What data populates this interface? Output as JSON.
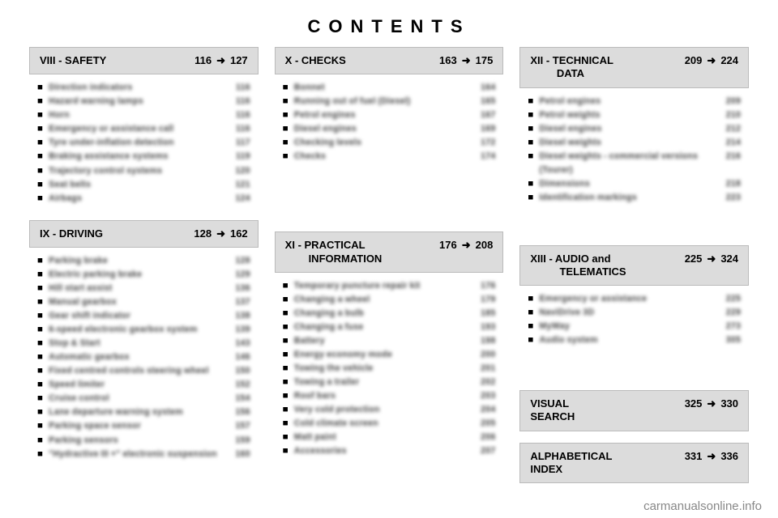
{
  "title": "CONTENTS",
  "watermark": "carmanualsonline.info",
  "arrow_glyph": "➜",
  "bullet_glyph": "■",
  "sections": {
    "viii": {
      "prefix": "VIII - SAFETY",
      "range_from": "116",
      "range_to": "127",
      "items": [
        {
          "label": "Direction indicators",
          "page": "116"
        },
        {
          "label": "Hazard warning lamps",
          "page": "116"
        },
        {
          "label": "Horn",
          "page": "116"
        },
        {
          "label": "Emergency or assistance call",
          "page": "116"
        },
        {
          "label": "Tyre under-inflation detection",
          "page": "117"
        },
        {
          "label": "Braking assistance systems",
          "page": "119"
        },
        {
          "label": "Trajectory control systems",
          "page": "120"
        },
        {
          "label": "Seat belts",
          "page": "121"
        },
        {
          "label": "Airbags",
          "page": "124"
        }
      ]
    },
    "ix": {
      "prefix": "IX - DRIVING",
      "range_from": "128",
      "range_to": "162",
      "items": [
        {
          "label": "Parking brake",
          "page": "128"
        },
        {
          "label": "Electric parking brake",
          "page": "129"
        },
        {
          "label": "Hill start assist",
          "page": "136"
        },
        {
          "label": "Manual gearbox",
          "page": "137"
        },
        {
          "label": "Gear shift indicator",
          "page": "138"
        },
        {
          "label": "6-speed electronic gearbox system",
          "page": "139"
        },
        {
          "label": "Stop & Start",
          "page": "143"
        },
        {
          "label": "Automatic gearbox",
          "page": "146"
        },
        {
          "label": "Fixed centred controls steering wheel",
          "page": "150"
        },
        {
          "label": "Speed limiter",
          "page": "152"
        },
        {
          "label": "Cruise control",
          "page": "154"
        },
        {
          "label": "Lane departure warning system",
          "page": "156"
        },
        {
          "label": "Parking space sensor",
          "page": "157"
        },
        {
          "label": "Parking sensors",
          "page": "159"
        },
        {
          "label": "\"Hydractive III +\" electronic suspension",
          "page": "160"
        }
      ]
    },
    "x": {
      "prefix": "X - CHECKS",
      "range_from": "163",
      "range_to": "175",
      "items": [
        {
          "label": "Bonnet",
          "page": "164"
        },
        {
          "label": "Running out of fuel (Diesel)",
          "page": "165"
        },
        {
          "label": "Petrol engines",
          "page": "167"
        },
        {
          "label": "Diesel engines",
          "page": "169"
        },
        {
          "label": "Checking levels",
          "page": "172"
        },
        {
          "label": "Checks",
          "page": "174"
        }
      ]
    },
    "xi": {
      "prefix": "XI - PRACTICAL\n        INFORMATION",
      "range_from": "176",
      "range_to": "208",
      "items": [
        {
          "label": "Temporary puncture repair kit",
          "page": "176"
        },
        {
          "label": "Changing a wheel",
          "page": "179"
        },
        {
          "label": "Changing a bulb",
          "page": "185"
        },
        {
          "label": "Changing a fuse",
          "page": "193"
        },
        {
          "label": "Battery",
          "page": "198"
        },
        {
          "label": "Energy economy mode",
          "page": "200"
        },
        {
          "label": "Towing the vehicle",
          "page": "201"
        },
        {
          "label": "Towing a trailer",
          "page": "202"
        },
        {
          "label": "Roof bars",
          "page": "203"
        },
        {
          "label": "Very cold protection",
          "page": "204"
        },
        {
          "label": "Cold climate screen",
          "page": "205"
        },
        {
          "label": "Matt paint",
          "page": "206"
        },
        {
          "label": "Accessories",
          "page": "207"
        }
      ]
    },
    "xii": {
      "prefix": "XII - TECHNICAL\n         DATA",
      "range_from": "209",
      "range_to": "224",
      "items": [
        {
          "label": "Petrol engines",
          "page": "209"
        },
        {
          "label": "Petrol weights",
          "page": "210"
        },
        {
          "label": "Diesel engines",
          "page": "212"
        },
        {
          "label": "Diesel weights",
          "page": "214"
        },
        {
          "label": "Diesel weights - commercial versions (Tourer)",
          "page": "216"
        },
        {
          "label": "Dimensions",
          "page": "218"
        },
        {
          "label": "Identification markings",
          "page": "223"
        }
      ]
    },
    "xiii": {
      "prefix": "XIII - AUDIO and\n          TELEMATICS",
      "range_from": "225",
      "range_to": "324",
      "items": [
        {
          "label": "Emergency or assistance",
          "page": "225"
        },
        {
          "label": "NaviDrive 3D",
          "page": "229"
        },
        {
          "label": "MyWay",
          "page": "273"
        },
        {
          "label": "Audio system",
          "page": "305"
        }
      ]
    },
    "visual": {
      "prefix": "VISUAL\nSEARCH",
      "range_from": "325",
      "range_to": "330"
    },
    "alpha": {
      "prefix": "ALPHABETICAL\nINDEX",
      "range_from": "331",
      "range_to": "336"
    }
  }
}
